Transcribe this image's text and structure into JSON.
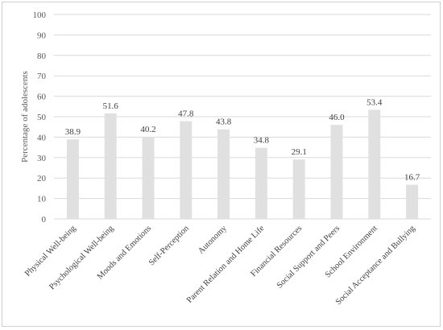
{
  "chart_data": {
    "type": "bar",
    "title": "",
    "xlabel": "",
    "ylabel": "Percentage of adolescents",
    "ylim": [
      0,
      100
    ],
    "yticks": [
      0,
      10,
      20,
      30,
      40,
      50,
      60,
      70,
      80,
      90,
      100
    ],
    "grid": true,
    "legend": "none",
    "bar_color": "#e0e0e0",
    "categories": [
      "Physical Well-being",
      "Psychological Well-being",
      "Moods and Emotions",
      "Self-Perception",
      "Autonomy",
      "Parent Relation and Home Life",
      "Financial Resources",
      "Social Support and Peers",
      "School Environment",
      "Social Acceptance and Bullying"
    ],
    "values": [
      38.9,
      51.6,
      40.2,
      47.8,
      43.8,
      34.8,
      29.1,
      46.0,
      53.4,
      16.7
    ],
    "value_labels": [
      "38.9",
      "51.6",
      "40.2",
      "47.8",
      "43.8",
      "34.8",
      "29.1",
      "46.0",
      "53.4",
      "16.7"
    ]
  }
}
